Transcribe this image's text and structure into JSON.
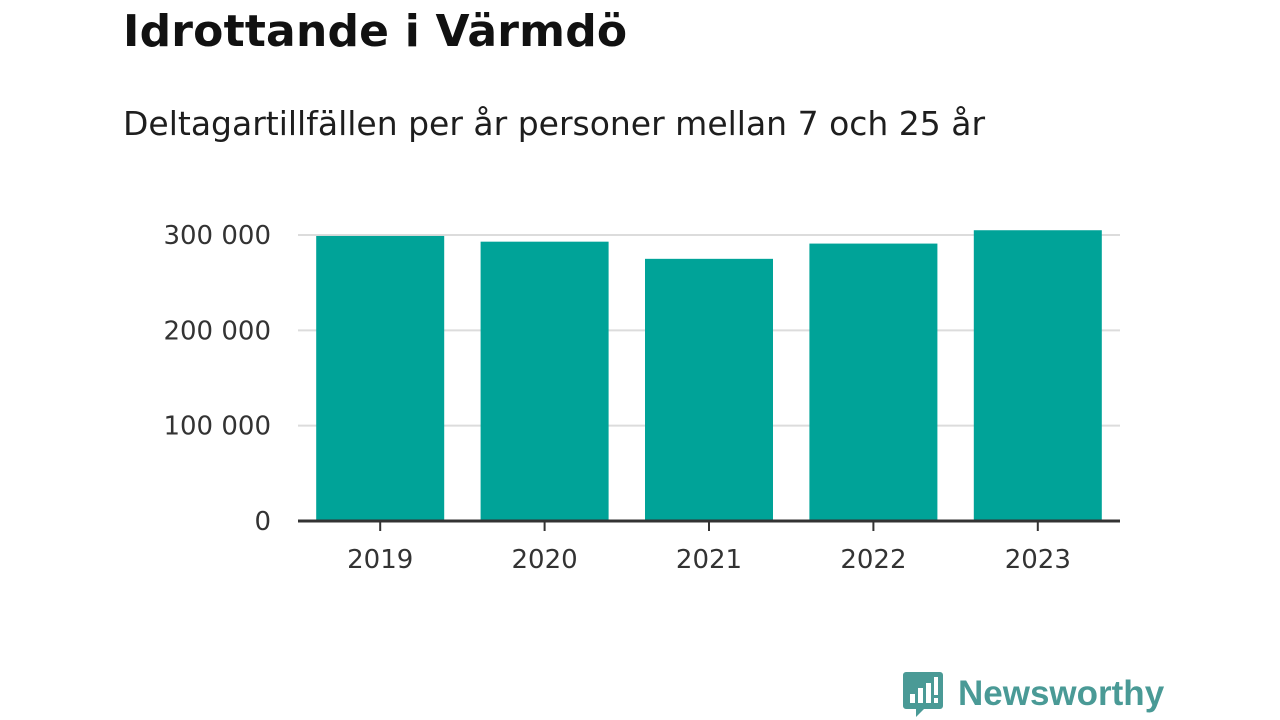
{
  "header": {
    "title": "Idrottande i Värmdö",
    "subtitle": "Deltagartillfällen per år personer mellan 7 och 25 år"
  },
  "brand": {
    "name": "Newsworthy",
    "icon": "bar-chart-bubble-icon",
    "color": "#4a9a96"
  },
  "chart_data": {
    "type": "bar",
    "categories": [
      "2019",
      "2020",
      "2021",
      "2022",
      "2023"
    ],
    "values": [
      299000,
      293000,
      275000,
      291000,
      305000
    ],
    "ylim": [
      0,
      300000
    ],
    "yticks": [
      0,
      100000,
      200000,
      300000
    ],
    "ytick_labels": [
      "0",
      "100 000",
      "200 000",
      "300 000"
    ],
    "bar_color": "#00a398",
    "grid": true,
    "legend": "none"
  }
}
